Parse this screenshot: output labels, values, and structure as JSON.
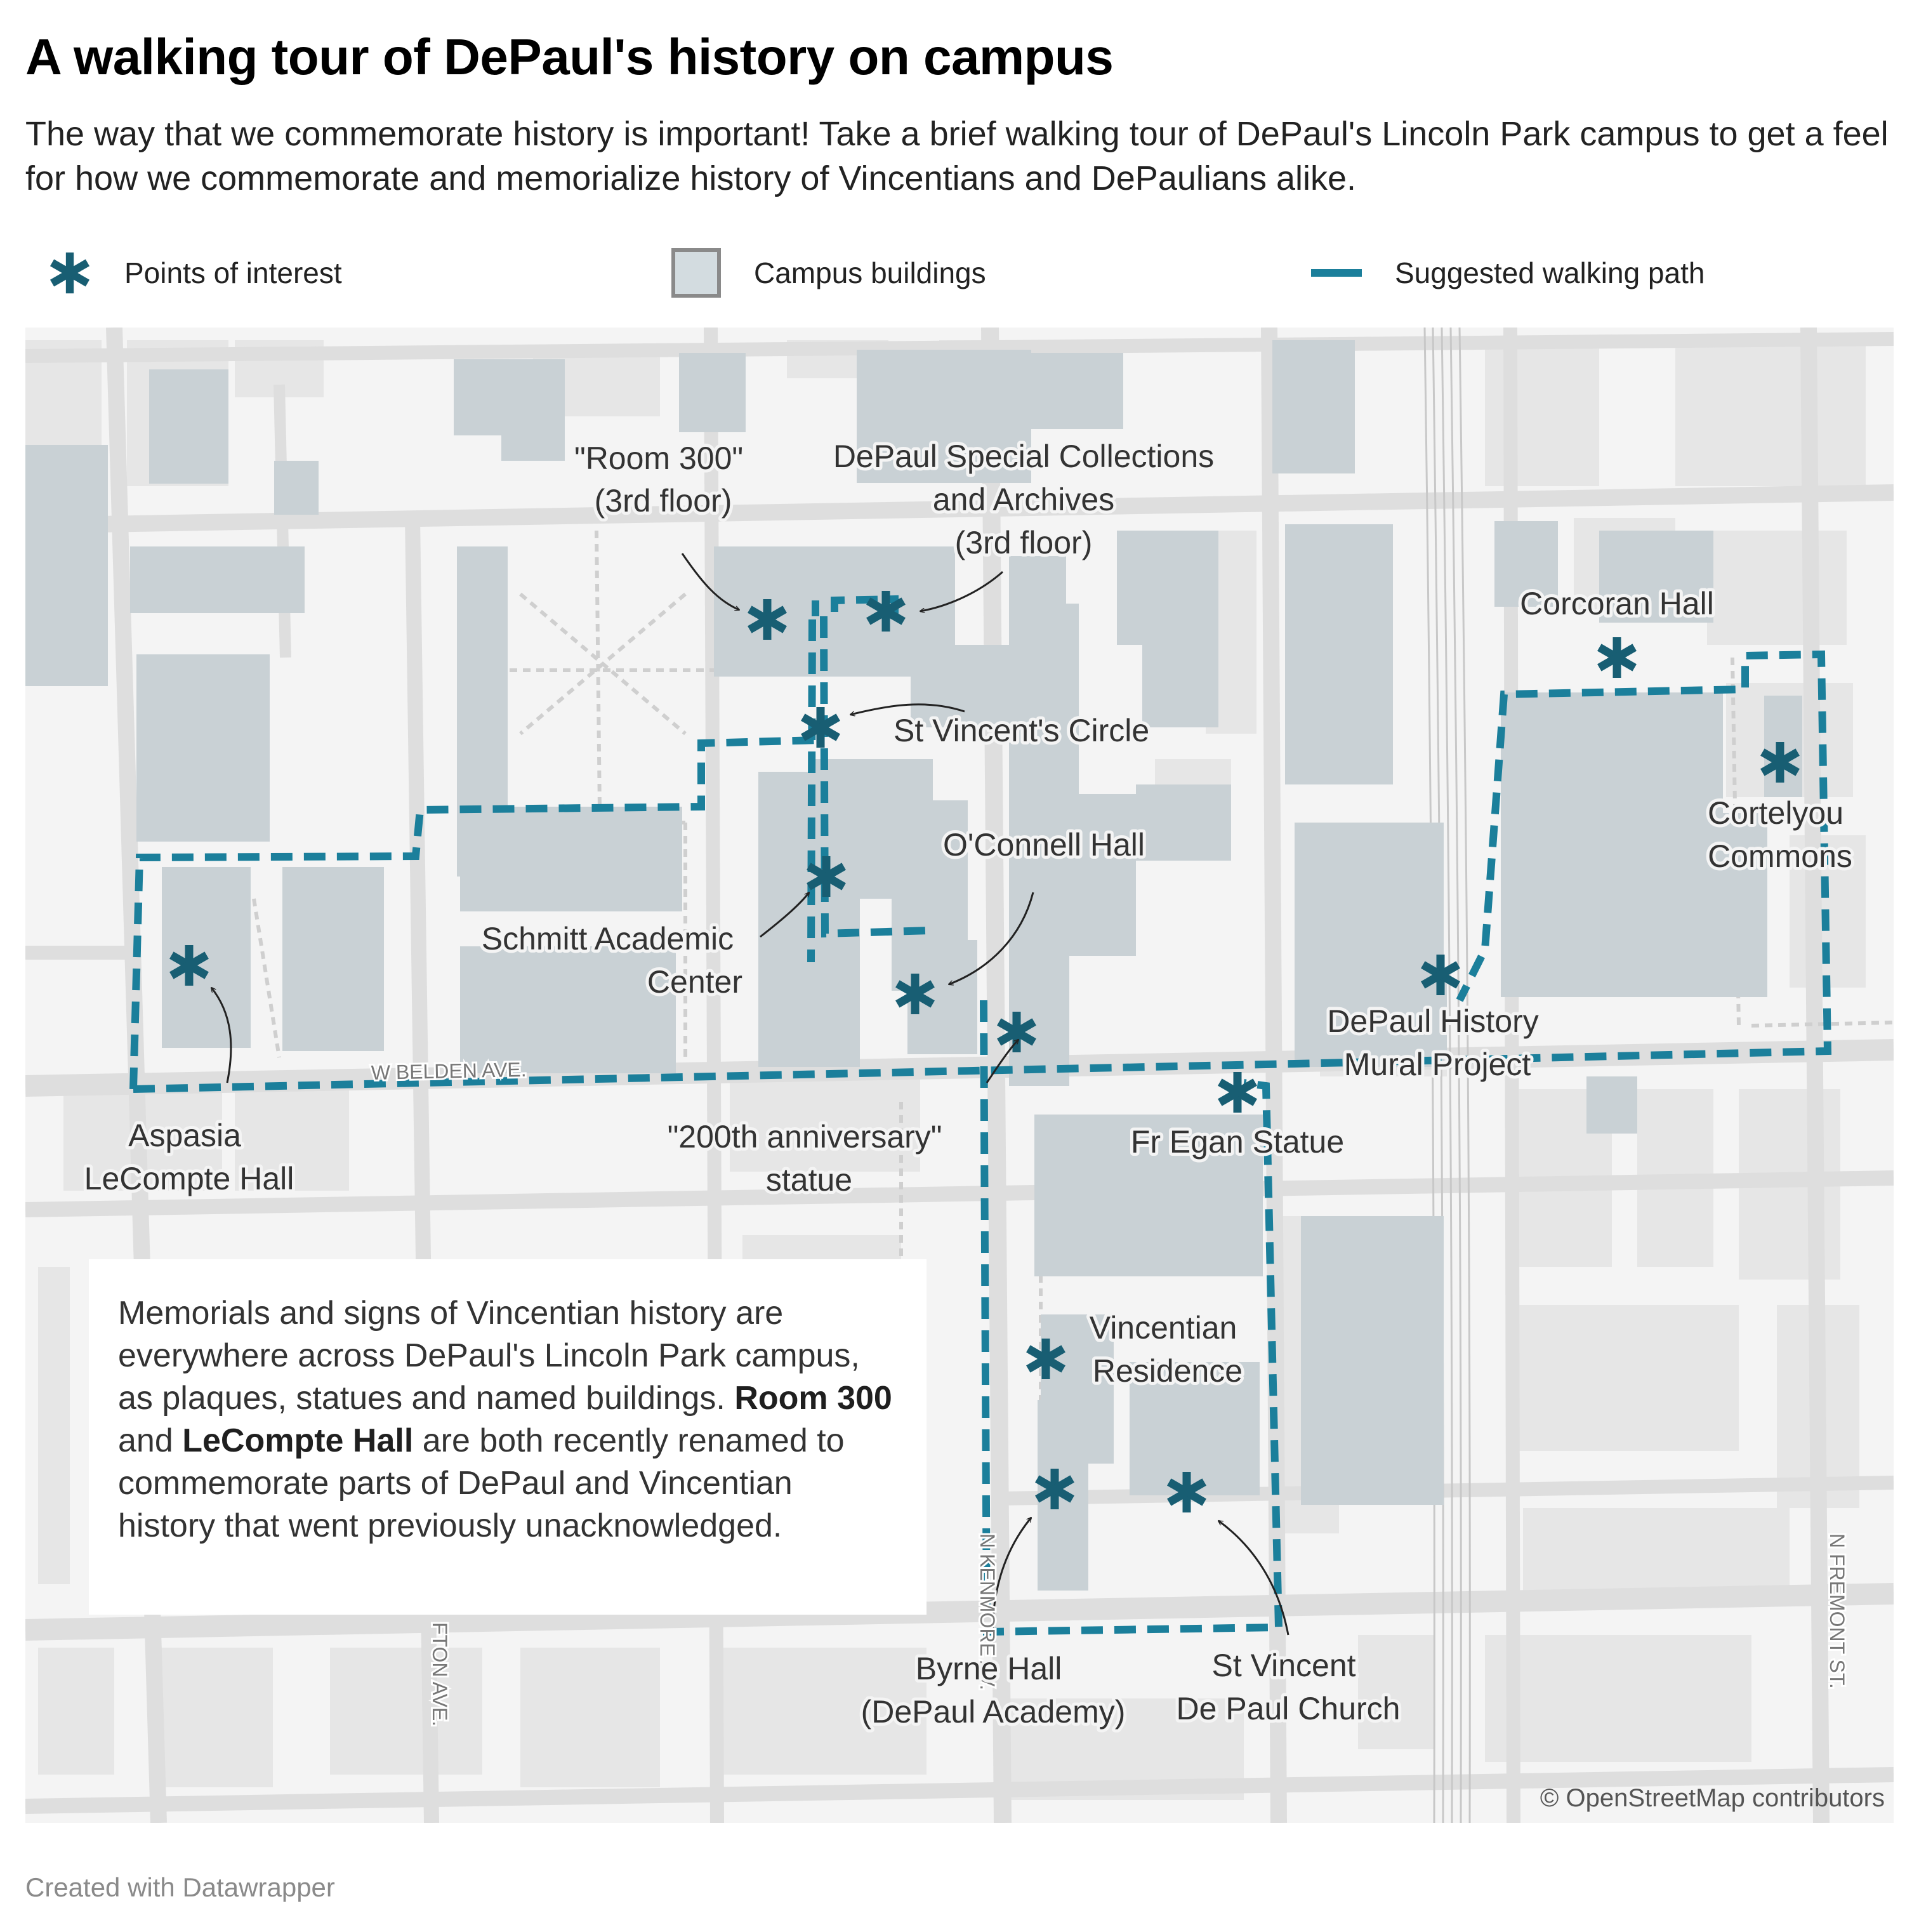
{
  "header": {
    "title": "A walking tour of DePaul's history on campus",
    "description": "The way that we commemorate history is important! Take a brief walking tour of DePaul's Lincoln Park campus to get a feel for how we commemorate and memorialize history of Vincentians and DePaulians alike."
  },
  "legend": {
    "points": "Points of interest",
    "buildings": "Campus buildings",
    "path": "Suggested walking path"
  },
  "colors": {
    "accent": "#1b7f9b",
    "marker": "#185e73",
    "building": "#c9d1d5",
    "road": "#dedede",
    "background": "#f4f4f4"
  },
  "map": {
    "streets": {
      "belden": "W BELDEN AVE.",
      "kenmore": "N KENMORE AV.",
      "clifton": "FTON AVE.",
      "fremont": "N FREMONT ST."
    },
    "labels": {
      "room300": [
        "\"Room 300\"",
        "(3rd floor)"
      ],
      "special_collections": [
        "DePaul Special Collections",
        "and Archives",
        "(3rd floor)"
      ],
      "st_vincents_circle": [
        "St Vincent's Circle"
      ],
      "oconnell": [
        "O'Connell Hall"
      ],
      "schmitt": [
        "Schmitt Academic",
        "Center"
      ],
      "corcoran": [
        "Corcoran Hall"
      ],
      "cortelyou": [
        "Cortelyou",
        "Commons"
      ],
      "mural": [
        "DePaul History",
        "Mural Project"
      ],
      "egan": [
        "Fr Egan Statue"
      ],
      "anniversary": [
        "\"200th anniversary\"",
        "statue"
      ],
      "lecompte": [
        "Aspasia",
        "LeCompte Hall"
      ],
      "vincentian": [
        "Vincentian",
        "Residence"
      ],
      "byrne": [
        "Byrne Hall",
        "(DePaul Academy)"
      ],
      "church": [
        "St Vincent",
        "De Paul Church"
      ]
    },
    "attribution": "© OpenStreetMap contributors"
  },
  "note": {
    "part1": "Memorials and signs of Vincentian history are everywhere across DePaul's Lincoln Park campus, as plaques, statues and named buildings. ",
    "bold1": "Room 300",
    "part2": " and ",
    "bold2": "LeCompte Hall",
    "part3": " are both recently renamed to commemorate parts of DePaul and Vincentian history that went previously unacknowledged."
  },
  "footer": "Created with Datawrapper"
}
